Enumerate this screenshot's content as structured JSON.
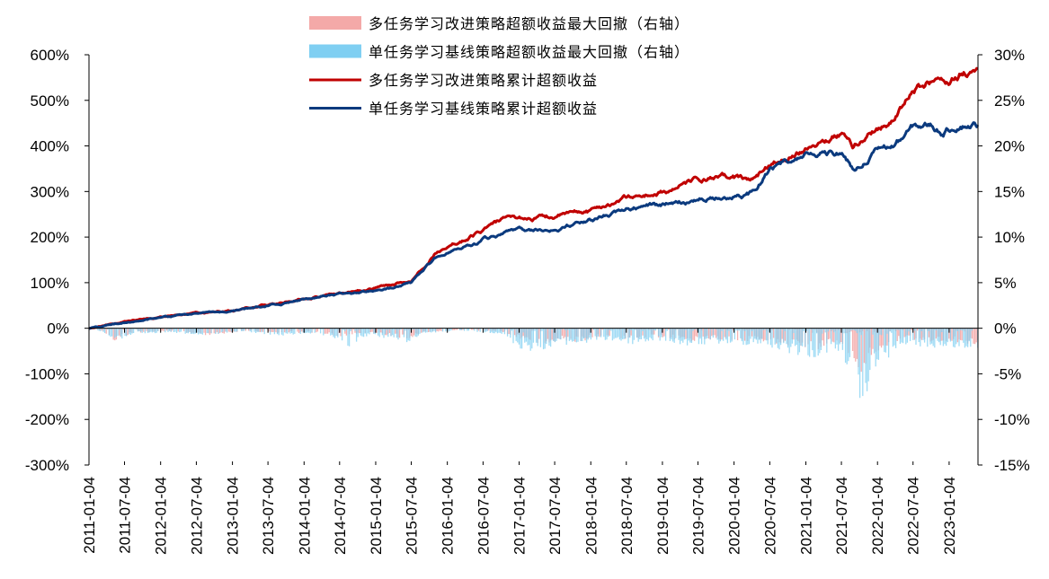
{
  "chart_data": {
    "type": "line",
    "title": "",
    "legend_position": "top-center",
    "grid": false,
    "colors": {
      "multi_cum": "#c00000",
      "single_cum": "#0b3a7e",
      "multi_dd": "#f4a9a8",
      "single_dd": "#7fcff2"
    },
    "left_axis": {
      "range": [
        -300,
        600
      ],
      "ticks": [
        600,
        500,
        400,
        300,
        200,
        100,
        0,
        -100,
        -200,
        -300
      ],
      "tick_labels": [
        "600%",
        "500%",
        "400%",
        "300%",
        "200%",
        "100%",
        "0%",
        "-100%",
        "-200%",
        "-300%"
      ]
    },
    "right_axis": {
      "range": [
        -15,
        30
      ],
      "ticks": [
        30,
        25,
        20,
        15,
        10,
        5,
        0,
        -5,
        -10,
        -15
      ],
      "tick_labels": [
        "30%",
        "25%",
        "20%",
        "15%",
        "10%",
        "5%",
        "0%",
        "-5%",
        "-10%",
        "-15%"
      ]
    },
    "x_axis": {
      "start": "2011-01-04",
      "end": "2023-05-31",
      "tick_labels": [
        "2011-01-04",
        "2011-07-04",
        "2012-01-04",
        "2012-07-04",
        "2013-01-04",
        "2013-07-04",
        "2014-01-04",
        "2014-07-04",
        "2015-01-04",
        "2015-07-04",
        "2016-01-04",
        "2016-07-04",
        "2017-01-04",
        "2017-07-04",
        "2018-01-04",
        "2018-07-04",
        "2019-01-04",
        "2019-07-04",
        "2020-01-04",
        "2020-07-04",
        "2021-01-04",
        "2021-07-04",
        "2022-01-04",
        "2022-07-04",
        "2023-01-04"
      ]
    },
    "series": [
      {
        "name": "多任务学习改进策略超额收益最大回撤（右轴）",
        "type": "area",
        "axis": "right",
        "points": [
          [
            "2011-01-04",
            0
          ],
          [
            "2011-03-15",
            -0.3
          ],
          [
            "2011-05-10",
            -1.5
          ],
          [
            "2011-08-20",
            -0.5
          ],
          [
            "2012-03-01",
            -0.4
          ],
          [
            "2012-09-01",
            -0.8
          ],
          [
            "2013-03-15",
            -0.3
          ],
          [
            "2013-09-01",
            -0.6
          ],
          [
            "2014-02-01",
            -0.5
          ],
          [
            "2014-07-01",
            -0.9
          ],
          [
            "2014-11-15",
            -0.6
          ],
          [
            "2015-03-01",
            -0.8
          ],
          [
            "2015-06-15",
            -1.2
          ],
          [
            "2015-09-01",
            -0.5
          ],
          [
            "2016-03-01",
            -0.2
          ],
          [
            "2016-10-01",
            -0.4
          ],
          [
            "2017-01-15",
            -1.2
          ],
          [
            "2017-04-01",
            -1.8
          ],
          [
            "2017-08-01",
            -1.4
          ],
          [
            "2017-11-01",
            -1.5
          ],
          [
            "2018-03-01",
            -1.0
          ],
          [
            "2018-08-01",
            -1.3
          ],
          [
            "2019-01-15",
            -1.0
          ],
          [
            "2019-05-15",
            -1.6
          ],
          [
            "2019-10-01",
            -1.2
          ],
          [
            "2020-02-01",
            -1.5
          ],
          [
            "2020-05-01",
            -1.4
          ],
          [
            "2020-09-01",
            -1.8
          ],
          [
            "2021-02-15",
            -2.5
          ],
          [
            "2021-06-01",
            -1.6
          ],
          [
            "2021-09-01",
            -3.5
          ],
          [
            "2021-10-15",
            -5.5
          ],
          [
            "2021-12-01",
            -3.2
          ],
          [
            "2022-03-01",
            -1.8
          ],
          [
            "2022-06-01",
            -1.2
          ],
          [
            "2022-09-01",
            -1.5
          ],
          [
            "2022-12-01",
            -1.4
          ],
          [
            "2023-03-01",
            -1.6
          ],
          [
            "2023-05-31",
            -1.9
          ]
        ]
      },
      {
        "name": "单任务学习基线策略超额收益最大回撤（右轴）",
        "type": "area",
        "axis": "right",
        "points": [
          [
            "2011-01-04",
            0
          ],
          [
            "2011-03-15",
            -0.4
          ],
          [
            "2011-05-10",
            -1.6
          ],
          [
            "2011-08-20",
            -0.6
          ],
          [
            "2012-03-01",
            -0.5
          ],
          [
            "2012-09-01",
            -0.8
          ],
          [
            "2013-03-15",
            -0.4
          ],
          [
            "2013-09-01",
            -0.9
          ],
          [
            "2014-02-01",
            -0.6
          ],
          [
            "2014-07-01",
            -1.3
          ],
          [
            "2014-08-15",
            -2.2
          ],
          [
            "2014-11-15",
            -0.9
          ],
          [
            "2015-03-01",
            -1.1
          ],
          [
            "2015-06-15",
            -1.6
          ],
          [
            "2015-09-01",
            -0.6
          ],
          [
            "2016-03-01",
            -0.3
          ],
          [
            "2016-10-01",
            -0.6
          ],
          [
            "2017-01-15",
            -2.4
          ],
          [
            "2017-04-01",
            -2.6
          ],
          [
            "2017-08-01",
            -1.8
          ],
          [
            "2017-11-01",
            -1.9
          ],
          [
            "2018-03-01",
            -1.3
          ],
          [
            "2018-08-01",
            -1.8
          ],
          [
            "2019-01-15",
            -1.4
          ],
          [
            "2019-05-15",
            -2.1
          ],
          [
            "2019-10-01",
            -1.7
          ],
          [
            "2020-02-01",
            -1.9
          ],
          [
            "2020-05-01",
            -1.8
          ],
          [
            "2020-09-01",
            -2.6
          ],
          [
            "2021-02-15",
            -3.4
          ],
          [
            "2021-06-01",
            -2.3
          ],
          [
            "2021-09-01",
            -5.0
          ],
          [
            "2021-10-15",
            -10.0
          ],
          [
            "2021-11-15",
            -7.0
          ],
          [
            "2021-12-15",
            -4.5
          ],
          [
            "2022-03-01",
            -3.4
          ],
          [
            "2022-06-01",
            -1.8
          ],
          [
            "2022-09-01",
            -2.1
          ],
          [
            "2022-12-01",
            -2.3
          ],
          [
            "2023-03-01",
            -2.2
          ],
          [
            "2023-05-31",
            -2.5
          ]
        ]
      },
      {
        "name": "多任务学习改进策略累计超额收益",
        "type": "line",
        "axis": "left",
        "points": [
          [
            "2011-01-04",
            0
          ],
          [
            "2011-07-04",
            15
          ],
          [
            "2012-01-04",
            25
          ],
          [
            "2012-07-04",
            33
          ],
          [
            "2013-01-04",
            38
          ],
          [
            "2013-07-04",
            52
          ],
          [
            "2014-01-04",
            65
          ],
          [
            "2014-07-04",
            78
          ],
          [
            "2015-01-04",
            88
          ],
          [
            "2015-05-15",
            100
          ],
          [
            "2015-07-04",
            105
          ],
          [
            "2015-09-01",
            135
          ],
          [
            "2015-11-01",
            165
          ],
          [
            "2016-01-04",
            185
          ],
          [
            "2016-04-01",
            195
          ],
          [
            "2016-07-04",
            215
          ],
          [
            "2016-10-01",
            235
          ],
          [
            "2017-01-04",
            240
          ],
          [
            "2017-07-04",
            245
          ],
          [
            "2018-01-04",
            258
          ],
          [
            "2018-07-04",
            287
          ],
          [
            "2019-01-04",
            297
          ],
          [
            "2019-07-04",
            325
          ],
          [
            "2020-01-04",
            330
          ],
          [
            "2020-04-01",
            325
          ],
          [
            "2020-07-04",
            360
          ],
          [
            "2021-01-04",
            400
          ],
          [
            "2021-07-04",
            430
          ],
          [
            "2021-09-01",
            400
          ],
          [
            "2022-01-04",
            440
          ],
          [
            "2022-04-01",
            460
          ],
          [
            "2022-07-04",
            520
          ],
          [
            "2022-10-01",
            540
          ],
          [
            "2022-12-01",
            535
          ],
          [
            "2023-03-01",
            560
          ],
          [
            "2023-05-31",
            565
          ]
        ]
      },
      {
        "name": "单任务学习基线策略累计超额收益",
        "type": "line",
        "axis": "left",
        "points": [
          [
            "2011-01-04",
            0
          ],
          [
            "2011-07-04",
            13
          ],
          [
            "2012-01-04",
            23
          ],
          [
            "2012-07-04",
            32
          ],
          [
            "2013-01-04",
            37
          ],
          [
            "2013-07-04",
            50
          ],
          [
            "2014-01-04",
            62
          ],
          [
            "2014-07-04",
            74
          ],
          [
            "2015-01-04",
            82
          ],
          [
            "2015-05-15",
            92
          ],
          [
            "2015-07-04",
            100
          ],
          [
            "2015-09-01",
            125
          ],
          [
            "2015-11-01",
            152
          ],
          [
            "2016-01-04",
            170
          ],
          [
            "2016-04-01",
            180
          ],
          [
            "2016-07-04",
            195
          ],
          [
            "2016-10-01",
            205
          ],
          [
            "2017-01-04",
            210
          ],
          [
            "2017-07-04",
            218
          ],
          [
            "2018-01-04",
            235
          ],
          [
            "2018-07-04",
            265
          ],
          [
            "2019-01-04",
            268
          ],
          [
            "2019-07-04",
            283
          ],
          [
            "2020-01-04",
            290
          ],
          [
            "2020-04-01",
            295
          ],
          [
            "2020-07-04",
            350
          ],
          [
            "2021-01-04",
            380
          ],
          [
            "2021-07-04",
            385
          ],
          [
            "2021-09-01",
            350
          ],
          [
            "2022-01-04",
            390
          ],
          [
            "2022-04-01",
            400
          ],
          [
            "2022-07-04",
            440
          ],
          [
            "2022-10-01",
            445
          ],
          [
            "2022-12-01",
            430
          ],
          [
            "2023-03-01",
            450
          ],
          [
            "2023-05-31",
            448
          ]
        ]
      }
    ]
  }
}
